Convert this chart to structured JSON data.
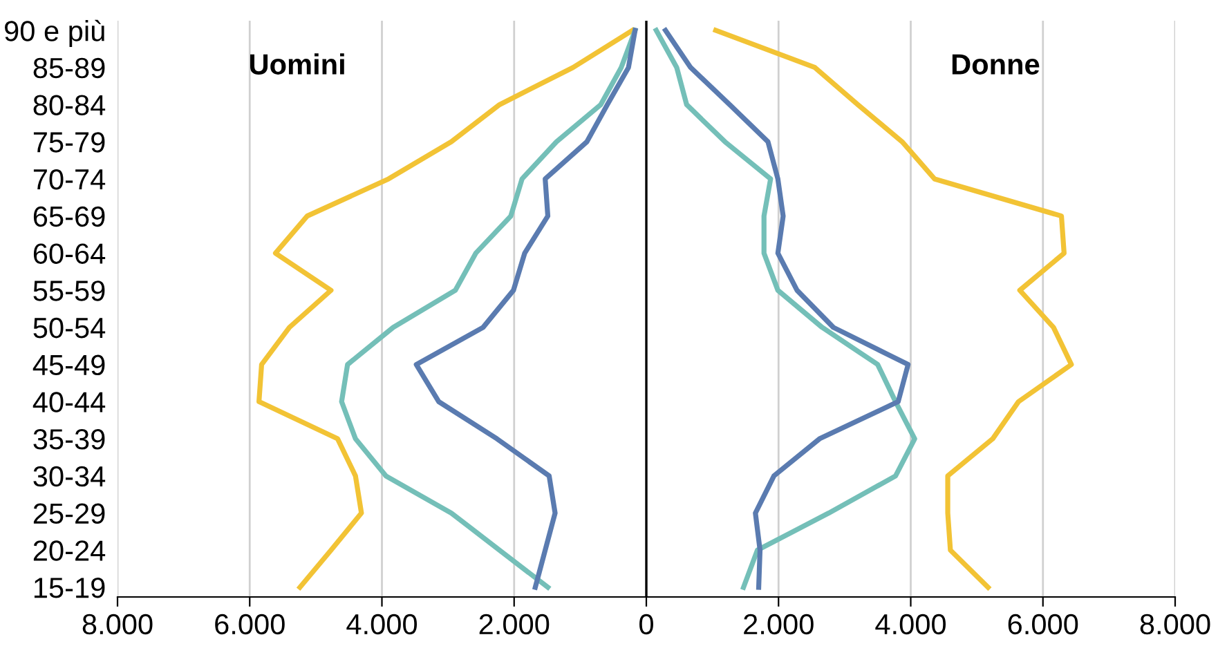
{
  "chart_data": {
    "type": "line",
    "orientation": "horizontal",
    "categories": [
      "90 e più",
      "85-89",
      "80-84",
      "75-79",
      "70-74",
      "65-69",
      "60-64",
      "55-59",
      "50-54",
      "45-49",
      "40-44",
      "35-39",
      "30-34",
      "25-29",
      "20-24",
      "15-19"
    ],
    "series": [
      {
        "color": "#f2c335",
        "values": [
          -210,
          -1110,
          -2220,
          -2950,
          -3900,
          -5130,
          -5610,
          -4770,
          -5400,
          -5820,
          -5860,
          -4670,
          -4400,
          -4310,
          -4770,
          -5240
        ]
      },
      {
        "color": "#f2c335",
        "values": [
          1050,
          2550,
          3200,
          3870,
          4360,
          6280,
          6320,
          5650,
          6160,
          6430,
          5630,
          5240,
          4560,
          4560,
          4600,
          5170
        ]
      },
      {
        "color": "#74bfb8",
        "values": [
          -170,
          -380,
          -690,
          -1360,
          -1880,
          -2050,
          -2580,
          -2890,
          -3830,
          -4520,
          -4610,
          -4400,
          -3940,
          -2950,
          -2220,
          -1490
        ]
      },
      {
        "color": "#74bfb8",
        "values": [
          150,
          460,
          610,
          1190,
          1880,
          1780,
          1780,
          1990,
          2660,
          3500,
          3770,
          4060,
          3770,
          2760,
          1680,
          1470
        ]
      },
      {
        "color": "#5a7bb0",
        "values": [
          -170,
          -270,
          -590,
          -900,
          -1530,
          -1490,
          -1840,
          -2010,
          -2470,
          -3480,
          -3140,
          -2260,
          -1470,
          -1380,
          -1530,
          -1680
        ]
      },
      {
        "color": "#5a7bb0",
        "values": [
          290,
          670,
          1260,
          1840,
          1990,
          2070,
          1990,
          2280,
          2830,
          3960,
          3810,
          2620,
          1930,
          1650,
          1720,
          1700
        ]
      }
    ],
    "xlim": [
      -8000,
      8000
    ],
    "xticks": [
      {
        "value": -8000,
        "label": "8.000"
      },
      {
        "value": -6000,
        "label": "6.000"
      },
      {
        "value": -4000,
        "label": "4.000"
      },
      {
        "value": -2000,
        "label": "2.000"
      },
      0,
      {
        "value": 2000,
        "label": "2.000"
      },
      {
        "value": 4000,
        "label": "4.000"
      },
      {
        "value": 6000,
        "label": "6.000"
      },
      {
        "value": 8000,
        "label": "8.000"
      }
    ],
    "grid": "x",
    "ref_lines": [
      {
        "axis": "x",
        "value": 0,
        "color": "#000000"
      }
    ],
    "annotations": [
      "Uomini",
      "Donne"
    ],
    "marker": "none",
    "line_style": "solid"
  }
}
